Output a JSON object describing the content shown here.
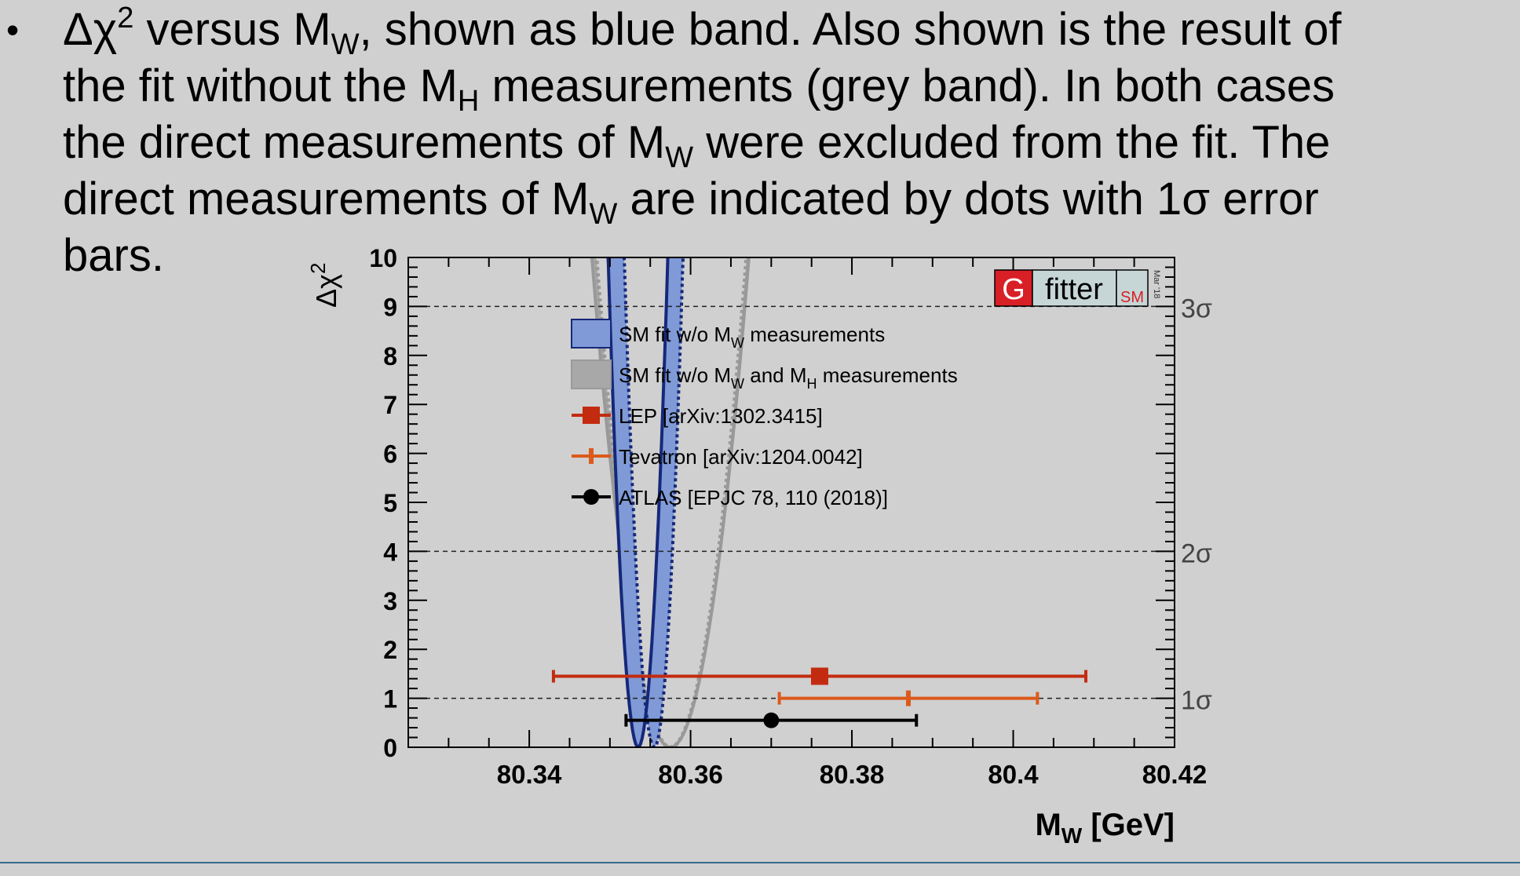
{
  "slide": {
    "bullet": "•",
    "text_parts": [
      {
        "t": "Δχ"
      },
      {
        "t": "2",
        "sup": true
      },
      {
        "t": " versus M"
      },
      {
        "t": "W",
        "sub": true
      },
      {
        "t": ", shown as blue band. Also shown is the result of the fit without the M"
      },
      {
        "t": "H",
        "sub": true
      },
      {
        "t": " measurements (grey band). In both cases the direct measurements of M"
      },
      {
        "t": "W",
        "sub": true
      },
      {
        "t": " were excluded from the fit. The direct measurements of M"
      },
      {
        "t": "W",
        "sub": true
      },
      {
        "t": " are indicated by dots with 1σ error bars."
      }
    ],
    "lines": [
      [
        {
          "t": "Δχ"
        },
        {
          "t": "2",
          "sup": true
        },
        {
          "t": " versus M"
        },
        {
          "t": "W",
          "sub": true
        },
        {
          "t": ", shown as blue band. Also shown is the result of"
        }
      ],
      [
        {
          "t": "the fit without the M"
        },
        {
          "t": "H",
          "sub": true
        },
        {
          "t": " measurements (grey band). In both cases"
        }
      ],
      [
        {
          "t": "the direct measurements of M"
        },
        {
          "t": "W",
          "sub": true
        },
        {
          "t": " were excluded from the fit. The"
        }
      ],
      [
        {
          "t": "direct measurements of M"
        },
        {
          "t": "W",
          "sub": true
        },
        {
          "t": " are indicated by dots with 1σ error"
        }
      ],
      [
        {
          "t": "bars."
        }
      ]
    ]
  },
  "logo": {
    "g": "G",
    "fitter": "fitter",
    "sm": "SM",
    "date": "Mar '18"
  },
  "chart_data": {
    "type": "line",
    "xlabel": "M",
    "xlabel_sub": "W",
    "xlabel_unit": " [GeV]",
    "ylabel": "Δχ",
    "ylabel_sup": "2",
    "xlim": [
      80.325,
      80.42
    ],
    "ylim": [
      0,
      10
    ],
    "x_ticks": [
      80.34,
      80.36,
      80.38,
      80.4,
      80.42
    ],
    "x_tick_labels": [
      "80.34",
      "80.36",
      "80.38",
      "80.4",
      "80.42"
    ],
    "y_ticks": [
      0,
      1,
      2,
      3,
      4,
      5,
      6,
      7,
      8,
      9,
      10
    ],
    "y_tick_labels": [
      "0",
      "1",
      "2",
      "3",
      "4",
      "5",
      "6",
      "7",
      "8",
      "9",
      "10"
    ],
    "sigma_lines": [
      {
        "y": 1,
        "label": "1σ"
      },
      {
        "y": 4,
        "label": "2σ"
      },
      {
        "y": 9,
        "label": "3σ"
      }
    ],
    "bands": [
      {
        "name": "SM fit w/o M_W measurements",
        "legend_main": "SM fit w/o M",
        "legend_sub": "W",
        "legend_rest": " measurements",
        "fill": "#7f9ad6",
        "edge": "#16287a",
        "solid_curve": {
          "center": 80.3535,
          "a": 850,
          "b": 860
        },
        "dotted_curve": {
          "center": 80.3555,
          "a": 850,
          "b": 890
        }
      },
      {
        "name": "SM fit w/o M_W and M_H measurements",
        "legend_main": "SM fit w/o M",
        "legend_sub": "W",
        "legend_mid": " and M",
        "legend_sub2": "H",
        "legend_rest": " measurements",
        "fill": "#a8a8a8",
        "edge": "#999999",
        "solid_curve": {
          "center": 80.3575,
          "a": 325,
          "b": 325
        },
        "dotted_curve": {
          "center": 80.3575,
          "a": 345,
          "b": 335
        }
      }
    ],
    "measurements": [
      {
        "name": "LEP [arXiv:1302.3415]",
        "value": 80.376,
        "low": 80.343,
        "high": 80.409,
        "y": 1.45,
        "color": "#c32b10",
        "marker": "square"
      },
      {
        "name": "Tevatron [arXiv:1204.0042]",
        "value": 80.387,
        "low": 80.371,
        "high": 80.403,
        "y": 1.0,
        "color": "#dc5a1a",
        "marker": "cross"
      },
      {
        "name": "ATLAS [EPJC 78, 110 (2018)]",
        "value": 80.37,
        "low": 80.352,
        "high": 80.388,
        "y": 0.55,
        "color": "#000000",
        "marker": "circle"
      }
    ],
    "legend_placement": "top-center",
    "grid": false
  }
}
